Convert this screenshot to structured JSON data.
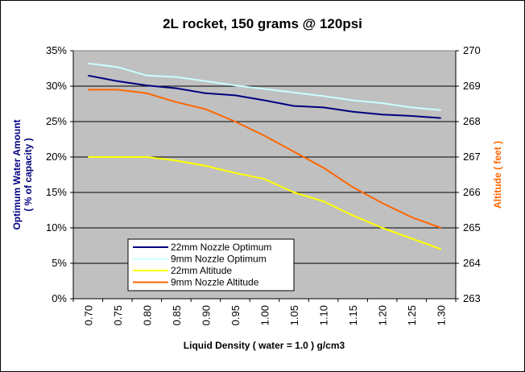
{
  "chart_data": {
    "type": "line",
    "title": "2L rocket, 150 grams @ 120psi",
    "xlabel": "Liquid Density ( water = 1.0 ) g/cm3",
    "ylabel_left_line1": "Optimum Water Amount",
    "ylabel_left_line2": "( % of capacity )",
    "ylabel_right": "Altitude ( feet )",
    "x": [
      0.7,
      0.75,
      0.8,
      0.85,
      0.9,
      0.95,
      1.0,
      1.05,
      1.1,
      1.15,
      1.2,
      1.25,
      1.3
    ],
    "x_tick_labels": [
      "0.70",
      "0.75",
      "0.80",
      "0.85",
      "0.90",
      "0.95",
      "1.00",
      "1.05",
      "1.10",
      "1.15",
      "1.20",
      "1.25",
      "1.30"
    ],
    "ylim_left": [
      0,
      35
    ],
    "ylim_right": [
      263,
      270
    ],
    "y_left_tick_labels": [
      "0%",
      "5%",
      "10%",
      "15%",
      "20%",
      "25%",
      "30%",
      "35%"
    ],
    "y_right_tick_labels": [
      "263",
      "264",
      "265",
      "266",
      "267",
      "268",
      "269",
      "270"
    ],
    "grid": true,
    "legend_position": "bottom-left",
    "series": [
      {
        "name": "22mm Nozzle Optimum",
        "axis": "left",
        "color": "#000080",
        "values": [
          31.5,
          30.7,
          30.1,
          29.7,
          29.0,
          28.7,
          28.0,
          27.2,
          27.0,
          26.4,
          26.0,
          25.8,
          25.5
        ]
      },
      {
        "name": "9mm Nozzle Optimum",
        "axis": "left",
        "color": "#ccffff",
        "values": [
          33.2,
          32.7,
          31.5,
          31.3,
          30.7,
          30.1,
          29.6,
          29.1,
          28.6,
          28.0,
          27.6,
          27.0,
          26.6
        ]
      },
      {
        "name": "22mm Altitude",
        "axis": "right",
        "color": "#ffff00",
        "values": [
          267.0,
          267.0,
          267.0,
          266.9,
          266.75,
          266.55,
          266.38,
          266.0,
          265.75,
          265.35,
          265.0,
          264.7,
          264.4
        ]
      },
      {
        "name": "9mm Nozzle Altitude",
        "axis": "right",
        "color": "#ff6600",
        "values": [
          268.9,
          268.9,
          268.8,
          268.55,
          268.35,
          268.0,
          267.6,
          267.15,
          266.7,
          266.15,
          265.7,
          265.3,
          265.0
        ]
      }
    ],
    "colors": {
      "plot_bg": "#c0c0c0",
      "left_axis_title": "#000080",
      "right_axis_title": "#ff6600"
    }
  }
}
